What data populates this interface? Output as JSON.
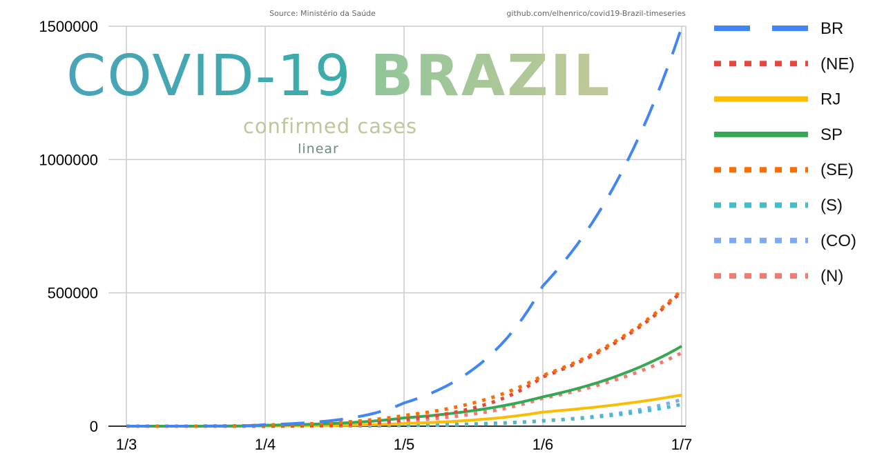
{
  "header": {
    "source": "Source: Ministério da Saúde",
    "repo": "github.com/elhenrico/covid19-Brazil-timeseries",
    "title_part1": "COVID-19",
    "title_part2": "BRAZIL",
    "subtitle": "confirmed cases",
    "scale": "linear"
  },
  "chart_data": {
    "type": "line",
    "x": [
      "1/3",
      "1/4",
      "1/5",
      "1/6",
      "1/7"
    ],
    "x_ticks": [
      "1/3",
      "1/4",
      "1/5",
      "1/6",
      "1/7"
    ],
    "y_ticks": [
      "0",
      "500000",
      "1000000",
      "1500000"
    ],
    "ylim": [
      0,
      1500000
    ],
    "grid": true,
    "legend_position": "right",
    "series": [
      {
        "name": "BR",
        "color": "#4285f4",
        "dash": "long-dash",
        "values": [
          2,
          5700,
          87000,
          526000,
          1496000
        ]
      },
      {
        "name": "(NE)",
        "color": "#e8453c",
        "dash": "dotted",
        "values": [
          0,
          900,
          25000,
          185000,
          505000
        ]
      },
      {
        "name": "RJ",
        "color": "#fbbc04",
        "dash": "solid",
        "values": [
          0,
          700,
          10000,
          53000,
          117000
        ]
      },
      {
        "name": "SP",
        "color": "#34a853",
        "dash": "solid",
        "values": [
          2,
          3500,
          31000,
          110000,
          300000
        ]
      },
      {
        "name": "(SE)",
        "color": "#ff6d01",
        "dash": "dotted",
        "values": [
          2,
          4300,
          40000,
          190000,
          510000
        ]
      },
      {
        "name": "(S)",
        "color": "#46bdc6",
        "dash": "dotted",
        "values": [
          0,
          500,
          3500,
          20000,
          82000
        ]
      },
      {
        "name": "(CO)",
        "color": "#7baaf7",
        "dash": "dotted",
        "values": [
          0,
          250,
          2500,
          20000,
          100000
        ]
      },
      {
        "name": "(N)",
        "color": "#f07b72",
        "dash": "dotted",
        "values": [
          0,
          350,
          20000,
          105000,
          275000
        ]
      }
    ]
  }
}
